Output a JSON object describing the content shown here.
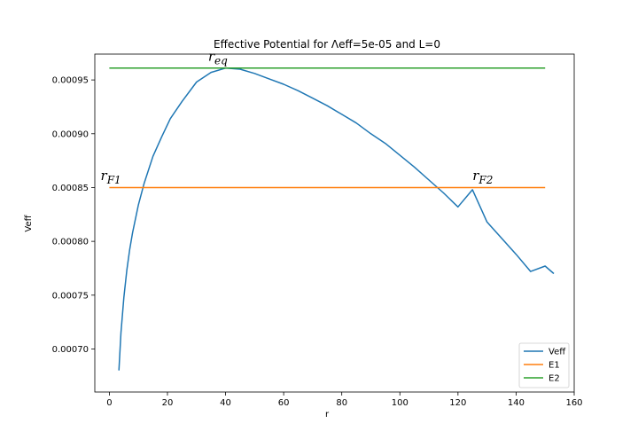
{
  "chart_data": {
    "type": "line",
    "title": "Effective Potential for Λeff=5e-05 and L=0",
    "xlabel": "r",
    "ylabel": "Veff",
    "xlim": [
      -5,
      160
    ],
    "ylim": [
      0.00066,
      0.000974
    ],
    "x_ticks": [
      0,
      20,
      40,
      60,
      80,
      100,
      120,
      140,
      160
    ],
    "y_ticks": [
      0.0007,
      0.00075,
      0.0008,
      0.00085,
      0.0009,
      0.00095
    ],
    "y_tick_labels": [
      "0.00070",
      "0.00075",
      "0.00080",
      "0.00085",
      "0.00090",
      "0.00095"
    ],
    "grid": false,
    "legend_position": "lower right",
    "series": [
      {
        "name": "Veff",
        "color": "#1f77b4",
        "x": [
          3.3,
          4,
          5,
          6,
          7,
          8,
          10,
          12,
          15,
          18,
          21,
          25,
          30,
          35,
          40,
          45,
          50,
          55,
          60,
          65,
          70,
          75,
          80,
          85,
          90,
          95,
          100,
          105,
          110,
          115,
          120,
          125,
          130,
          135,
          140,
          145,
          150,
          153
        ],
        "y": [
          0.00068,
          0.000715,
          0.000748,
          0.000773,
          0.000792,
          0.000808,
          0.000834,
          0.000854,
          0.000879,
          0.000897,
          0.000914,
          0.00093,
          0.000948,
          0.000957,
          0.000961,
          0.00096,
          0.000956,
          0.000951,
          0.000946,
          0.00094,
          0.000933,
          0.000926,
          0.000918,
          0.00091,
          0.0009,
          0.000891,
          0.00088,
          0.000869,
          0.000857,
          0.000845,
          0.000832,
          0.000848,
          0.000818,
          0.000803,
          0.000788,
          0.000772,
          0.000777,
          0.00077
        ]
      },
      {
        "name": "E1",
        "color": "#ff7f0e",
        "x": [
          0,
          150
        ],
        "y": [
          0.00085,
          0.00085
        ]
      },
      {
        "name": "E2",
        "color": "#2ca02c",
        "x": [
          0,
          150
        ],
        "y": [
          0.000961,
          0.000961
        ]
      }
    ],
    "annotations": [
      {
        "base": "r",
        "sub": "eq",
        "x": 34,
        "y": 0.000968
      },
      {
        "base": "r",
        "sub": "F1",
        "x": -3,
        "y": 0.000857
      },
      {
        "base": "r",
        "sub": "F2",
        "x": 125,
        "y": 0.000857
      }
    ]
  }
}
